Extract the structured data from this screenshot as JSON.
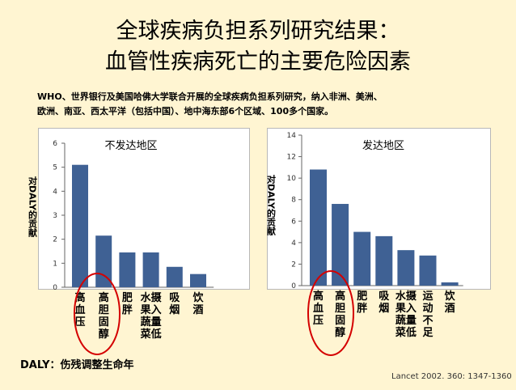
{
  "slide": {
    "title_line1": "全球疾病负担系列研究结果：",
    "title_line2": "血管性疾病死亡的主要危险因素",
    "intro_line1": "WHO、世界银行及美国哈佛大学联合开展的全球疾病负担系列研究，纳入非洲、美洲、",
    "intro_line2": "欧洲、南亚、西太平洋（包括中国）、地中海东部6个区域、100多个国家。",
    "footnote": "DALY：伤残调整生命年",
    "reference": "Lancet 2002. 360: 1347-1360"
  },
  "chart_data": [
    {
      "type": "bar",
      "title": "不发达地区",
      "ylabel": "对DALY的贡献",
      "categories": [
        "高血压",
        "高胆固醇",
        "肥胖",
        "水果蔬菜摄入量低",
        "吸烟",
        "饮酒"
      ],
      "values": [
        5.1,
        2.15,
        1.45,
        1.45,
        0.85,
        0.55
      ],
      "ylim": [
        0,
        6
      ],
      "yticks": [
        0,
        1,
        2,
        3,
        4,
        5,
        6
      ],
      "bar_color": "#3f6194",
      "highlighted_categories": [
        "高血压",
        "高胆固醇"
      ]
    },
    {
      "type": "bar",
      "title": "发达地区",
      "ylabel": "对DALY的贡献",
      "categories": [
        "高血压",
        "高胆固醇",
        "肥胖",
        "吸烟",
        "水果蔬菜摄入量低",
        "运动不足",
        "饮酒"
      ],
      "values": [
        10.8,
        7.6,
        5.0,
        4.6,
        3.3,
        2.8,
        0.3
      ],
      "ylim": [
        0,
        14
      ],
      "yticks": [
        0,
        2,
        4,
        6,
        8,
        10,
        12,
        14
      ],
      "bar_color": "#3f6194",
      "highlighted_categories": [
        "高血压",
        "高胆固醇"
      ]
    }
  ],
  "colors": {
    "background": "#fff5d2",
    "highlight_circle": "#d40000",
    "bar": "#3f6194"
  }
}
